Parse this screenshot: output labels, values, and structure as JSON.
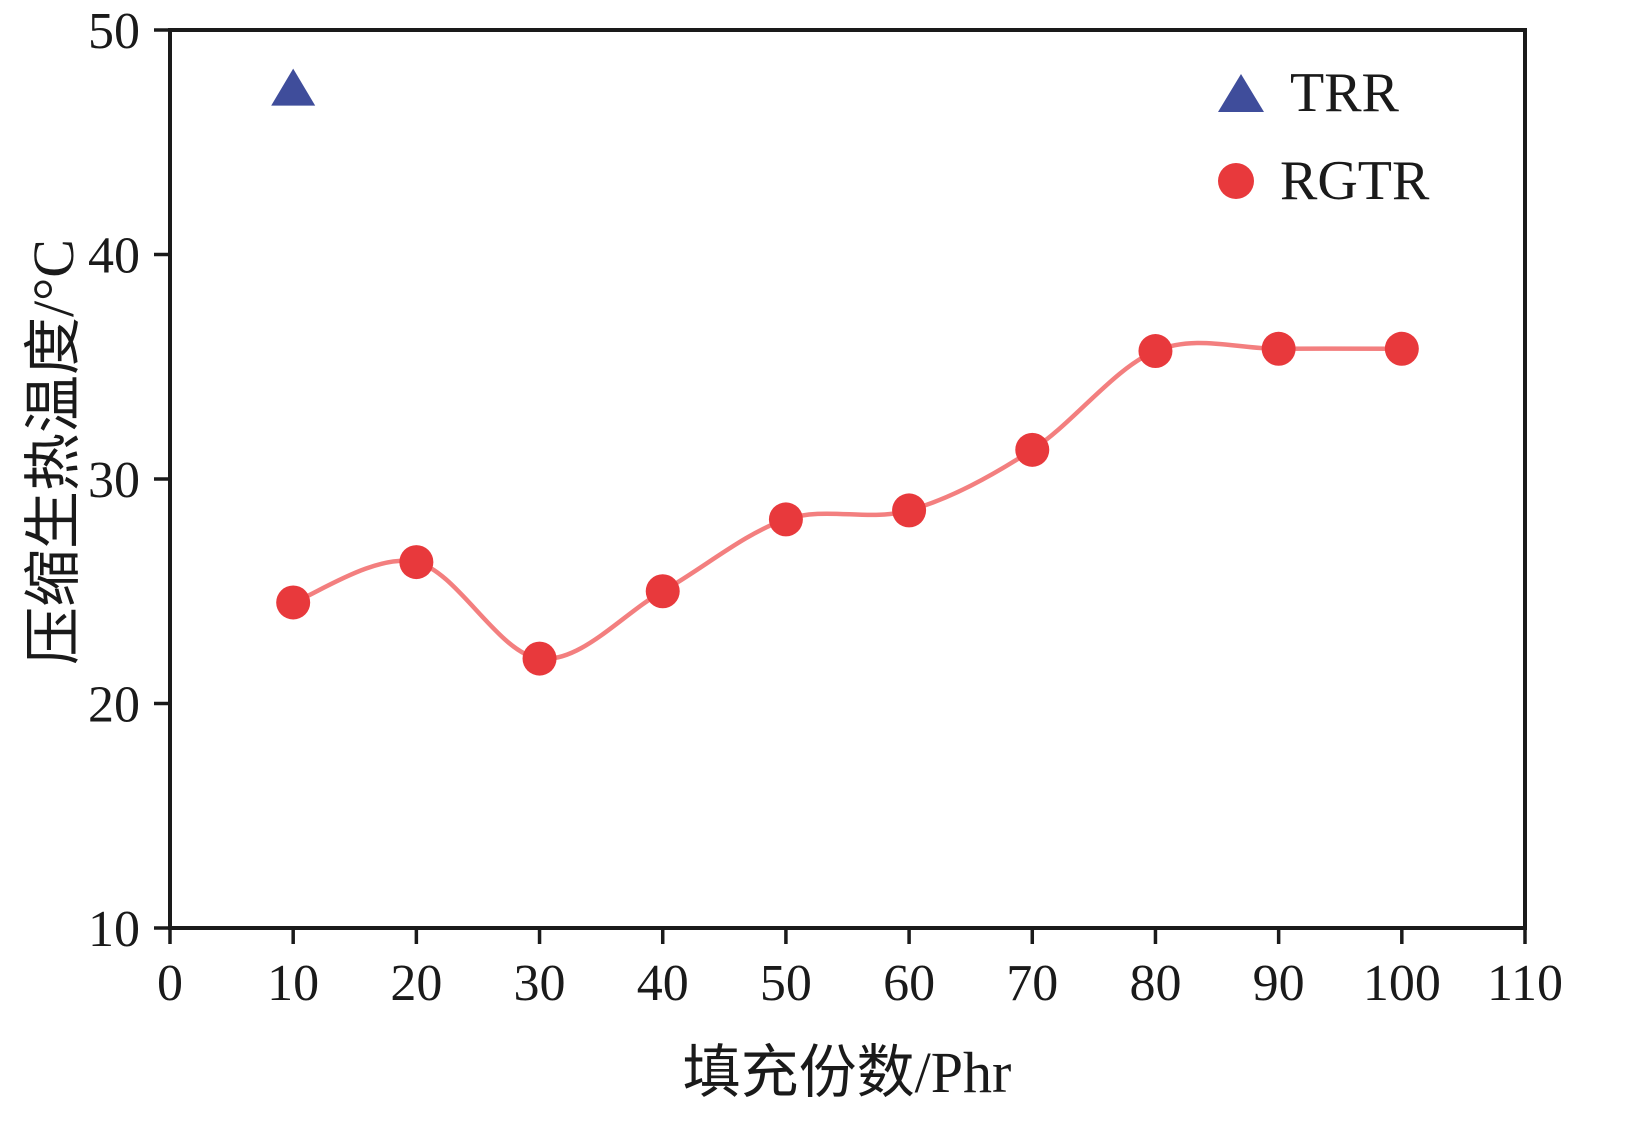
{
  "figure": {
    "background": "#ffffff",
    "frame_color": "#1a1a1a"
  },
  "chart_data": {
    "type": "scatter",
    "title": "",
    "xlabel": "填充份数/Phr",
    "ylabel": "压缩生热温度/°C",
    "xlim": [
      0,
      110
    ],
    "ylim": [
      10,
      50
    ],
    "x_ticks": [
      0,
      10,
      20,
      30,
      40,
      50,
      60,
      70,
      80,
      90,
      100,
      110
    ],
    "y_ticks": [
      10,
      20,
      30,
      40,
      50
    ],
    "grid": "off",
    "legend_position": "top-right-inside",
    "series": [
      {
        "name": "TRR",
        "marker": "triangle",
        "color": "#3f4d9b",
        "line": false,
        "x": [
          10
        ],
        "y": [
          47.3
        ]
      },
      {
        "name": "RGTR",
        "marker": "circle",
        "color": "#e8393c",
        "line": true,
        "line_color": "#f37f7f",
        "x": [
          10,
          20,
          30,
          40,
          50,
          60,
          70,
          80,
          90,
          100
        ],
        "y": [
          24.5,
          26.3,
          22.0,
          25.0,
          28.2,
          28.6,
          31.3,
          35.7,
          35.8,
          35.8
        ]
      }
    ]
  }
}
